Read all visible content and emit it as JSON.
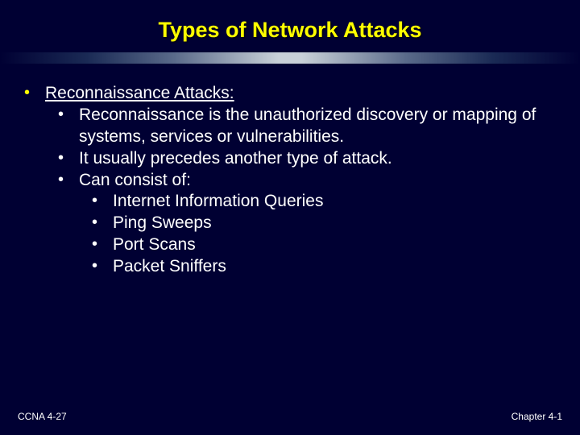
{
  "slide": {
    "title": "Types of Network Attacks",
    "title_color": "#ffff00",
    "title_fontsize": 27,
    "background_color": "#000033",
    "body_text_color": "#ffffff",
    "bullet_color_l1": "#ffff00",
    "bullet_color_sub": "#ffffff",
    "body_fontsize": 21,
    "divider_gradient": [
      "#000033",
      "#1a2a55",
      "#5a6a8a",
      "#c8d0d8",
      "#c8d0d8",
      "#5a6a8a",
      "#1a2a55",
      "#000033"
    ],
    "l1_heading": "Reconnaissance Attacks:",
    "l2_items": [
      "Reconnaissance is the unauthorized discovery or mapping of systems, services or vulnerabilities.",
      "It usually precedes another type of attack.",
      "Can consist of:"
    ],
    "l3_items": [
      "Internet Information Queries",
      "Ping Sweeps",
      "Port Scans",
      "Packet Sniffers"
    ],
    "footer_left": "CCNA 4-27",
    "footer_right": "Chapter 4-1",
    "footer_fontsize": 12
  }
}
